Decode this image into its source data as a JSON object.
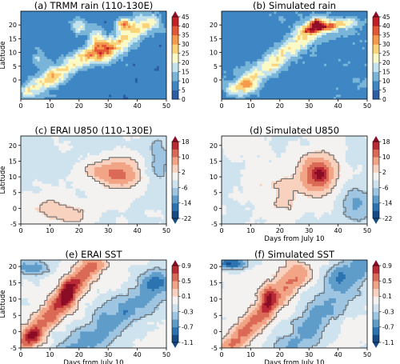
{
  "chart_data": [
    {
      "type": "heatmap",
      "title": "(a) TRMM rain (110-130E)",
      "ylabel": "Latitude",
      "xlabel": "",
      "xlim": [
        0,
        50
      ],
      "ylim": [
        -7,
        25
      ],
      "xticks": [
        0,
        10,
        20,
        30,
        40,
        50
      ],
      "yticks": [
        0,
        5,
        10,
        15,
        20
      ],
      "colorbar": {
        "levels": [
          0,
          5,
          10,
          15,
          20,
          25,
          30,
          35,
          40,
          45
        ],
        "palette": "sequential-blue-yellow-red",
        "extend": "max"
      },
      "contour_overlay": false,
      "features": [
        {
          "x": [
            2,
            28
          ],
          "y": [
            -5,
            12
          ],
          "value": 25
        },
        {
          "x": [
            28,
            43
          ],
          "y": [
            8,
            22
          ],
          "value": 30
        },
        {
          "x": [
            34,
            37
          ],
          "y": [
            18,
            22
          ],
          "value": 45
        },
        {
          "x": [
            10,
            14
          ],
          "y": [
            -2,
            3
          ],
          "value": 20
        }
      ]
    },
    {
      "type": "heatmap",
      "title": "(b) Simulated rain",
      "ylabel": "",
      "xlabel": "",
      "xlim": [
        0,
        50
      ],
      "ylim": [
        -7,
        25
      ],
      "xticks": [
        0,
        10,
        20,
        30,
        40,
        50
      ],
      "yticks": [
        0,
        5,
        10,
        15,
        20
      ],
      "colorbar": {
        "levels": [
          0,
          5,
          10,
          15,
          20,
          25,
          30,
          35,
          40,
          45
        ],
        "palette": "sequential-blue-yellow-red",
        "extend": "max"
      },
      "contour_overlay": false,
      "features": [
        {
          "x": [
            8,
            35
          ],
          "y": [
            -3,
            20
          ],
          "value": 25
        },
        {
          "x": [
            29,
            44
          ],
          "y": [
            16,
            22
          ],
          "value": 35
        },
        {
          "x": [
            31,
            34
          ],
          "y": [
            19,
            22
          ],
          "value": 45
        }
      ]
    },
    {
      "type": "heatmap",
      "title": "(c) ERAI U850 (110-130E)",
      "ylabel": "Latitude",
      "xlabel": "",
      "xlim": [
        0,
        50
      ],
      "ylim": [
        -5,
        23
      ],
      "xticks": [
        0,
        10,
        20,
        30,
        40,
        50
      ],
      "yticks": [
        -5,
        0,
        5,
        10,
        15,
        20
      ],
      "colorbar": {
        "levels": [
          -22,
          -14,
          -6,
          2,
          10,
          18
        ],
        "palette": "diverging-blue-red",
        "extend": "both"
      },
      "contour_overlay": true,
      "features": [
        {
          "x": [
            25,
            42
          ],
          "y": [
            6,
            17
          ],
          "value": 12
        },
        {
          "x": [
            0,
            22
          ],
          "y": [
            -5,
            5
          ],
          "value": 4
        },
        {
          "x": [
            42,
            50
          ],
          "y": [
            10,
            22
          ],
          "value": -6
        }
      ]
    },
    {
      "type": "heatmap",
      "title": "(d) Simulated U850",
      "ylabel": "",
      "xlabel": "Days from July 10",
      "xlim": [
        0,
        50
      ],
      "ylim": [
        -5,
        23
      ],
      "xticks": [
        0,
        10,
        20,
        30,
        40,
        50
      ],
      "yticks": [
        -5,
        0,
        5,
        10,
        15,
        20
      ],
      "colorbar": {
        "levels": [
          -22,
          -14,
          -6,
          2,
          10,
          18
        ],
        "palette": "diverging-blue-red",
        "extend": "both"
      },
      "contour_overlay": true,
      "features": [
        {
          "x": [
            25,
            40
          ],
          "y": [
            5,
            18
          ],
          "value": 14
        },
        {
          "x": [
            31,
            36
          ],
          "y": [
            9,
            13
          ],
          "value": 20
        },
        {
          "x": [
            40,
            50
          ],
          "y": [
            -5,
            10
          ],
          "value": -8
        }
      ]
    },
    {
      "type": "heatmap",
      "title": "(e) ERAI SST",
      "ylabel": "Latitude",
      "xlabel": "Days from July 10",
      "xlim": [
        0,
        50
      ],
      "ylim": [
        -5,
        22
      ],
      "xticks": [
        0,
        10,
        20,
        30,
        40,
        50
      ],
      "yticks": [
        -5,
        0,
        5,
        10,
        15,
        20
      ],
      "colorbar": {
        "levels": [
          -1.1,
          -0.7,
          -0.3,
          0.1,
          0.5,
          0.9
        ],
        "palette": "diverging-blue-red",
        "extend": "both"
      },
      "contour_overlay": true,
      "features": [
        {
          "x": [
            2,
            25
          ],
          "y": [
            -4,
            20
          ],
          "value": 0.5
        },
        {
          "x": [
            13,
            19
          ],
          "y": [
            7,
            15
          ],
          "value": 1.0
        },
        {
          "x": [
            20,
            50
          ],
          "y": [
            -5,
            22
          ],
          "value": -0.3
        },
        {
          "x": [
            0,
            10
          ],
          "y": [
            15,
            22
          ],
          "value": -0.5
        }
      ]
    },
    {
      "type": "heatmap",
      "title": "(f) Simulated SST",
      "ylabel": "",
      "xlabel": "Days from July 10",
      "xlim": [
        0,
        50
      ],
      "ylim": [
        -5,
        22
      ],
      "xticks": [
        0,
        10,
        20,
        30,
        40,
        50
      ],
      "yticks": [
        -5,
        0,
        5,
        10,
        15,
        20
      ],
      "colorbar": {
        "levels": [
          -1.1,
          -0.7,
          -0.3,
          0.1,
          0.5,
          0.9
        ],
        "palette": "diverging-blue-red",
        "extend": "both"
      },
      "contour_overlay": true,
      "features": [
        {
          "x": [
            5,
            25
          ],
          "y": [
            -3,
            18
          ],
          "value": 0.4
        },
        {
          "x": [
            14,
            19
          ],
          "y": [
            6,
            14
          ],
          "value": 0.8
        },
        {
          "x": [
            25,
            50
          ],
          "y": [
            -5,
            22
          ],
          "value": -0.3
        },
        {
          "x": [
            0,
            10
          ],
          "y": [
            17,
            22
          ],
          "value": -0.6
        }
      ]
    }
  ]
}
